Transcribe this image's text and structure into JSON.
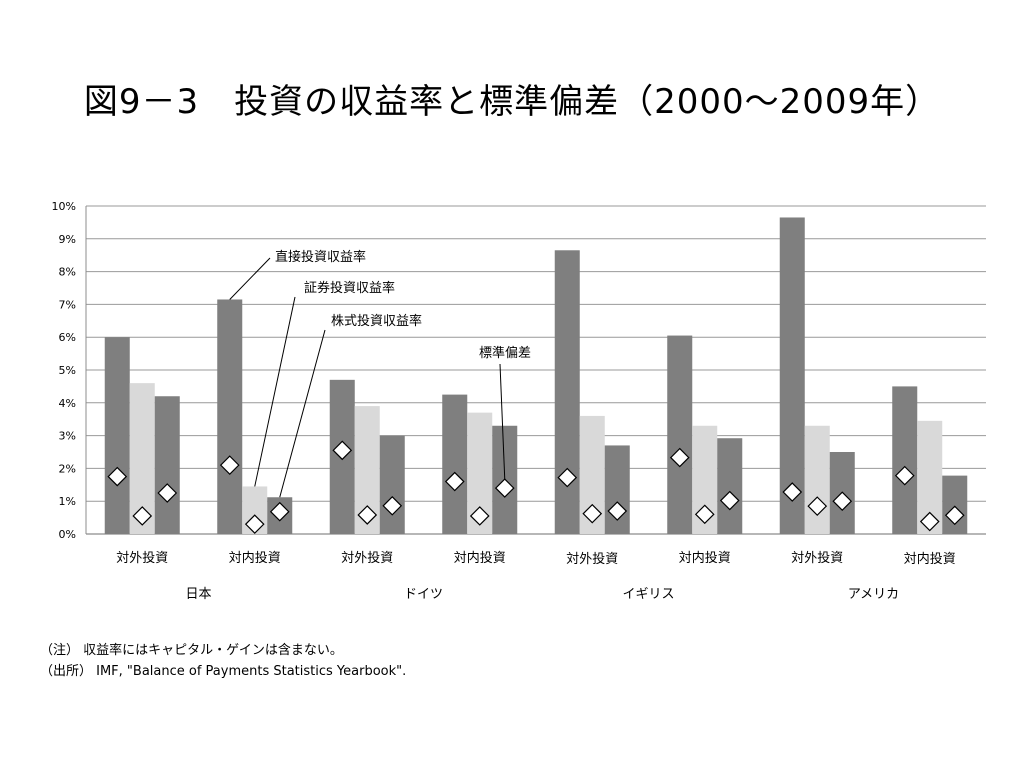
{
  "title": "図9－3　投資の収益率と標準偏差（2000～2009年）",
  "notes": [
    "（注） 収益率にはキャピタル・ゲインは含まない。",
    "（出所） IMF, \"Balance of Payments Statistics Yearbook\"."
  ],
  "chart_data": {
    "type": "bar",
    "title": "図9－3　投資の収益率と標準偏差（2000～2009年）",
    "xlabel": "",
    "ylabel": "",
    "ylim": [
      0,
      10
    ],
    "y_unit": "%",
    "yticks": [
      "0%",
      "1%",
      "2%",
      "3%",
      "4%",
      "5%",
      "6%",
      "7%",
      "8%",
      "9%",
      "10%"
    ],
    "grid": true,
    "groups": [
      {
        "name": "日本",
        "categories": [
          {
            "label": "対外投資",
            "bars": [
              6.0,
              4.6,
              4.2
            ],
            "std": [
              1.75,
              0.55,
              1.25
            ]
          },
          {
            "label": "対内投資",
            "bars": [
              7.15,
              1.45,
              1.12
            ],
            "std": [
              2.1,
              0.3,
              0.68
            ]
          }
        ]
      },
      {
        "name": "ドイツ",
        "categories": [
          {
            "label": "対外投資",
            "bars": [
              4.7,
              3.9,
              3.0
            ],
            "std": [
              2.55,
              0.58,
              0.86
            ]
          },
          {
            "label": "対内投資",
            "bars": [
              4.25,
              3.7,
              3.3
            ],
            "std": [
              1.6,
              0.55,
              1.4
            ]
          }
        ]
      },
      {
        "name": "イギリス",
        "categories": [
          {
            "label": "対外投資",
            "bars": [
              8.65,
              3.6,
              2.7
            ],
            "std": [
              1.72,
              0.62,
              0.7
            ]
          },
          {
            "label": "対内投資",
            "bars": [
              6.05,
              3.3,
              2.92
            ],
            "std": [
              2.33,
              0.6,
              1.02
            ]
          }
        ]
      },
      {
        "name": "アメリカ",
        "categories": [
          {
            "label": "対外投資",
            "bars": [
              9.65,
              3.3,
              2.5
            ],
            "std": [
              1.28,
              0.85,
              1.0
            ]
          },
          {
            "label": "対内投資",
            "bars": [
              4.5,
              3.45,
              1.78
            ],
            "std": [
              1.78,
              0.38,
              0.57
            ]
          }
        ]
      }
    ],
    "series": [
      {
        "name": "直接投資収益率",
        "color": "#7f7f7f"
      },
      {
        "name": "証券投資収益率",
        "color": "#d9d9d9"
      },
      {
        "name": "株式投資収益率",
        "color": "#7f7f7f"
      }
    ],
    "std_series": {
      "name": "標準偏差",
      "marker": "diamond",
      "fill": "#ffffff",
      "stroke": "#000000"
    },
    "annotations": [
      {
        "text": "直接投資収益率",
        "target": "日本-対内投資-bar-0"
      },
      {
        "text": "証券投資収益率",
        "target": "日本-対内投資-bar-1"
      },
      {
        "text": "株式投資収益率",
        "target": "日本-対内投資-bar-2"
      },
      {
        "text": "標準偏差",
        "target": "ドイツ-対内投資-std-2"
      }
    ]
  }
}
